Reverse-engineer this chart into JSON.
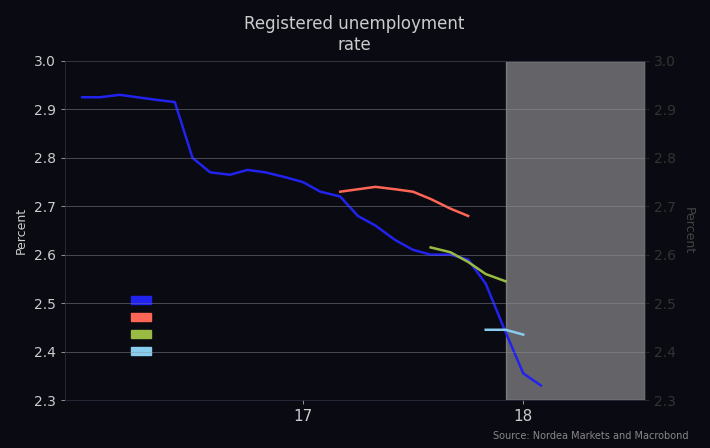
{
  "title": "Registered unemployment\nrate",
  "ylabel_left": "Percent",
  "ylabel_right": "Percent",
  "source": "Source: Nordea Markets and Macrobond",
  "background_color": "#0a0a12",
  "plot_bg_color": "#0a0a12",
  "text_color": "#cccccc",
  "grid_color": "#2a2a3a",
  "shade_start": 17.92,
  "shade_end": 18.55,
  "shade_color": "#b0b0b0",
  "shade_alpha": 0.55,
  "ylim": [
    2.3,
    3.0
  ],
  "yticks": [
    2.3,
    2.4,
    2.5,
    2.6,
    2.7,
    2.8,
    2.9,
    3.0
  ],
  "series": {
    "blue": {
      "color": "#2222ee",
      "x": [
        16.0,
        16.08,
        16.17,
        16.25,
        16.33,
        16.42,
        16.5,
        16.58,
        16.67,
        16.75,
        16.83,
        16.92,
        17.0,
        17.08,
        17.17,
        17.25,
        17.33,
        17.42,
        17.5,
        17.58,
        17.67,
        17.75,
        17.83,
        17.92,
        18.0,
        18.08
      ],
      "y": [
        2.925,
        2.925,
        2.93,
        2.925,
        2.92,
        2.915,
        2.8,
        2.77,
        2.765,
        2.775,
        2.77,
        2.76,
        2.75,
        2.73,
        2.72,
        2.68,
        2.66,
        2.63,
        2.61,
        2.6,
        2.6,
        2.59,
        2.54,
        2.44,
        2.355,
        2.33
      ]
    },
    "red": {
      "color": "#ff6655",
      "x": [
        17.17,
        17.25,
        17.33,
        17.42,
        17.5,
        17.58,
        17.67,
        17.75
      ],
      "y": [
        2.73,
        2.735,
        2.74,
        2.735,
        2.73,
        2.715,
        2.695,
        2.68
      ]
    },
    "green": {
      "color": "#99bb44",
      "x": [
        17.58,
        17.67,
        17.75,
        17.83,
        17.92
      ],
      "y": [
        2.615,
        2.605,
        2.585,
        2.56,
        2.545
      ]
    },
    "lightblue": {
      "color": "#88ccee",
      "x": [
        17.83,
        17.92,
        18.0
      ],
      "y": [
        2.445,
        2.445,
        2.435
      ]
    }
  },
  "xticks": [
    17,
    18
  ],
  "xlim": [
    15.92,
    18.55
  ]
}
